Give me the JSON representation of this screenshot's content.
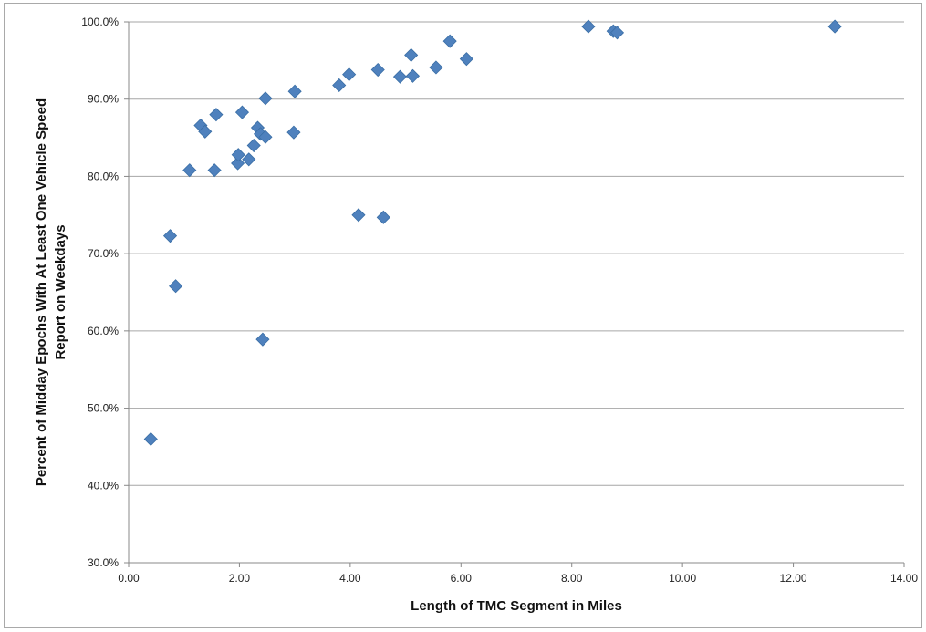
{
  "chart_data": {
    "type": "scatter",
    "title": "",
    "xlabel": "Length of TMC Segment in Miles",
    "ylabel_line1": "Percent of Midday Epochs With At Least One Vehicle Speed",
    "ylabel_line2": "Report on Weekdays",
    "xlim": [
      0,
      14
    ],
    "ylim": [
      30,
      100
    ],
    "x_ticks": [
      "0.00",
      "2.00",
      "4.00",
      "6.00",
      "8.00",
      "10.00",
      "12.00",
      "14.00"
    ],
    "y_ticks": [
      "30.0%",
      "40.0%",
      "50.0%",
      "60.0%",
      "70.0%",
      "80.0%",
      "90.0%",
      "100.0%"
    ],
    "grid": "horizontal",
    "marker_color": "#4f81bd",
    "marker_shape": "diamond",
    "points": [
      {
        "x": 0.4,
        "y": 46.0
      },
      {
        "x": 0.75,
        "y": 72.3
      },
      {
        "x": 0.85,
        "y": 65.8
      },
      {
        "x": 1.1,
        "y": 80.8
      },
      {
        "x": 1.3,
        "y": 86.6
      },
      {
        "x": 1.38,
        "y": 85.8
      },
      {
        "x": 1.55,
        "y": 80.8
      },
      {
        "x": 1.58,
        "y": 88.0
      },
      {
        "x": 1.97,
        "y": 81.7
      },
      {
        "x": 1.98,
        "y": 82.8
      },
      {
        "x": 2.05,
        "y": 88.3
      },
      {
        "x": 2.17,
        "y": 82.2
      },
      {
        "x": 2.26,
        "y": 84.0
      },
      {
        "x": 2.33,
        "y": 86.3
      },
      {
        "x": 2.38,
        "y": 85.5
      },
      {
        "x": 2.42,
        "y": 58.9
      },
      {
        "x": 2.47,
        "y": 85.1
      },
      {
        "x": 2.47,
        "y": 90.1
      },
      {
        "x": 2.98,
        "y": 85.7
      },
      {
        "x": 3.0,
        "y": 91.0
      },
      {
        "x": 3.8,
        "y": 91.8
      },
      {
        "x": 3.98,
        "y": 93.2
      },
      {
        "x": 4.15,
        "y": 75.0
      },
      {
        "x": 4.5,
        "y": 93.8
      },
      {
        "x": 4.6,
        "y": 74.7
      },
      {
        "x": 4.9,
        "y": 92.9
      },
      {
        "x": 5.1,
        "y": 95.7
      },
      {
        "x": 5.13,
        "y": 93.0
      },
      {
        "x": 5.55,
        "y": 94.1
      },
      {
        "x": 5.8,
        "y": 97.5
      },
      {
        "x": 6.1,
        "y": 95.2
      },
      {
        "x": 8.3,
        "y": 99.4
      },
      {
        "x": 8.75,
        "y": 98.8
      },
      {
        "x": 8.82,
        "y": 98.6
      },
      {
        "x": 12.75,
        "y": 99.4
      }
    ]
  }
}
